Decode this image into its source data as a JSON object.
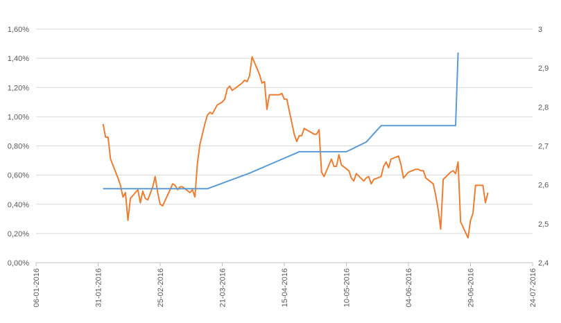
{
  "chart_data": {
    "type": "line",
    "x_axis": {
      "type": "date",
      "range": [
        "2016-01-06",
        "2016-07-24"
      ],
      "tick_labels": [
        "06-01-2016",
        "31-01-2016",
        "25-02-2016",
        "21-03-2016",
        "15-04-2016",
        "10-05-2016",
        "04-06-2016",
        "29-06-2016",
        "24-07-2016"
      ],
      "tick_dates": [
        "2016-01-06",
        "2016-01-31",
        "2016-02-25",
        "2016-03-21",
        "2016-04-15",
        "2016-05-10",
        "2016-06-04",
        "2016-06-29",
        "2016-07-24"
      ]
    },
    "y_left": {
      "range": [
        0,
        0.016
      ],
      "tick_labels": [
        "0,00%",
        "0,20%",
        "0,40%",
        "0,60%",
        "0,80%",
        "1,00%",
        "1,20%",
        "1,40%",
        "1,60%"
      ]
    },
    "y_right": {
      "range": [
        2.4,
        3.0
      ],
      "tick_labels": [
        "2,4",
        "2,5",
        "2,6",
        "2,7",
        "2,8",
        "2,9",
        "3"
      ]
    },
    "grid": "horizontal",
    "legend": "none",
    "series": [
      {
        "axis": "left",
        "color": "#ED7D31",
        "points": [
          [
            "2016-02-02",
            0.0095
          ],
          [
            "2016-02-03",
            0.0086
          ],
          [
            "2016-02-04",
            0.0086
          ],
          [
            "2016-02-05",
            0.0071
          ],
          [
            "2016-02-08",
            0.0058
          ],
          [
            "2016-02-09",
            0.0053
          ],
          [
            "2016-02-10",
            0.0045
          ],
          [
            "2016-02-11",
            0.0048
          ],
          [
            "2016-02-12",
            0.0029
          ],
          [
            "2016-02-13",
            0.0044
          ],
          [
            "2016-02-15",
            0.0048
          ],
          [
            "2016-02-16",
            0.005
          ],
          [
            "2016-02-17",
            0.0041
          ],
          [
            "2016-02-18",
            0.0049
          ],
          [
            "2016-02-19",
            0.0044
          ],
          [
            "2016-02-20",
            0.0043
          ],
          [
            "2016-02-22",
            0.0052
          ],
          [
            "2016-02-23",
            0.0059
          ],
          [
            "2016-02-24",
            0.0048
          ],
          [
            "2016-02-25",
            0.004
          ],
          [
            "2016-02-26",
            0.0039
          ],
          [
            "2016-02-29",
            0.005
          ],
          [
            "2016-03-01",
            0.0054
          ],
          [
            "2016-03-02",
            0.0053
          ],
          [
            "2016-03-03",
            0.005
          ],
          [
            "2016-03-04",
            0.0052
          ],
          [
            "2016-03-05",
            0.0052
          ],
          [
            "2016-03-08",
            0.0048
          ],
          [
            "2016-03-09",
            0.005
          ],
          [
            "2016-03-10",
            0.0045
          ],
          [
            "2016-03-11",
            0.0068
          ],
          [
            "2016-03-12",
            0.0081
          ],
          [
            "2016-03-14",
            0.0095
          ],
          [
            "2016-03-15",
            0.0101
          ],
          [
            "2016-03-16",
            0.0103
          ],
          [
            "2016-03-17",
            0.0102
          ],
          [
            "2016-03-18",
            0.0105
          ],
          [
            "2016-03-19",
            0.0108
          ],
          [
            "2016-03-21",
            0.011
          ],
          [
            "2016-03-22",
            0.0112
          ],
          [
            "2016-03-23",
            0.0119
          ],
          [
            "2016-03-24",
            0.0121
          ],
          [
            "2016-03-25",
            0.0118
          ],
          [
            "2016-03-29",
            0.0123
          ],
          [
            "2016-03-30",
            0.0125
          ],
          [
            "2016-03-31",
            0.0124
          ],
          [
            "2016-04-01",
            0.0128
          ],
          [
            "2016-04-02",
            0.0141
          ],
          [
            "2016-04-05",
            0.0129
          ],
          [
            "2016-04-06",
            0.0123
          ],
          [
            "2016-04-07",
            0.0124
          ],
          [
            "2016-04-08",
            0.0105
          ],
          [
            "2016-04-09",
            0.0115
          ],
          [
            "2016-04-12",
            0.0115
          ],
          [
            "2016-04-13",
            0.0115
          ],
          [
            "2016-04-14",
            0.0116
          ],
          [
            "2016-04-15",
            0.0112
          ],
          [
            "2016-04-16",
            0.0112
          ],
          [
            "2016-04-19",
            0.0088
          ],
          [
            "2016-04-20",
            0.0083
          ],
          [
            "2016-04-21",
            0.0087
          ],
          [
            "2016-04-22",
            0.0087
          ],
          [
            "2016-04-23",
            0.0092
          ],
          [
            "2016-04-26",
            0.0089
          ],
          [
            "2016-04-27",
            0.0088
          ],
          [
            "2016-04-28",
            0.0088
          ],
          [
            "2016-04-29",
            0.0091
          ],
          [
            "2016-04-30",
            0.0062
          ],
          [
            "2016-05-01",
            0.0059
          ],
          [
            "2016-05-04",
            0.0071
          ],
          [
            "2016-05-05",
            0.0066
          ],
          [
            "2016-05-06",
            0.0066
          ],
          [
            "2016-05-07",
            0.0074
          ],
          [
            "2016-05-08",
            0.0067
          ],
          [
            "2016-05-11",
            0.0063
          ],
          [
            "2016-05-12",
            0.0058
          ],
          [
            "2016-05-13",
            0.0056
          ],
          [
            "2016-05-14",
            0.0061
          ],
          [
            "2016-05-17",
            0.0056
          ],
          [
            "2016-05-18",
            0.0058
          ],
          [
            "2016-05-19",
            0.0059
          ],
          [
            "2016-05-20",
            0.0054
          ],
          [
            "2016-05-21",
            0.0057
          ],
          [
            "2016-05-24",
            0.0059
          ],
          [
            "2016-05-25",
            0.0066
          ],
          [
            "2016-05-26",
            0.0069
          ],
          [
            "2016-05-27",
            0.0065
          ],
          [
            "2016-05-28",
            0.0071
          ],
          [
            "2016-05-31",
            0.0073
          ],
          [
            "2016-06-01",
            0.0067
          ],
          [
            "2016-06-02",
            0.0058
          ],
          [
            "2016-06-03",
            0.006
          ],
          [
            "2016-06-04",
            0.0062
          ],
          [
            "2016-06-07",
            0.0064
          ],
          [
            "2016-06-08",
            0.0064
          ],
          [
            "2016-06-09",
            0.0063
          ],
          [
            "2016-06-10",
            0.0063
          ],
          [
            "2016-06-11",
            0.0058
          ],
          [
            "2016-06-14",
            0.0054
          ],
          [
            "2016-06-15",
            0.0046
          ],
          [
            "2016-06-16",
            0.0036
          ],
          [
            "2016-06-17",
            0.0023
          ],
          [
            "2016-06-18",
            0.0057
          ],
          [
            "2016-06-21",
            0.0062
          ],
          [
            "2016-06-22",
            0.0063
          ],
          [
            "2016-06-23",
            0.0061
          ],
          [
            "2016-06-24",
            0.0069
          ],
          [
            "2016-06-25",
            0.0028
          ],
          [
            "2016-06-28",
            0.0017
          ],
          [
            "2016-06-29",
            0.0029
          ],
          [
            "2016-06-30",
            0.0034
          ],
          [
            "2016-07-01",
            0.0053
          ],
          [
            "2016-07-04",
            0.0053
          ],
          [
            "2016-07-05",
            0.0041
          ],
          [
            "2016-07-06",
            0.0048
          ]
        ]
      },
      {
        "axis": "right",
        "color": "#5B9BD5",
        "points": [
          [
            "2016-02-02",
            2.59
          ],
          [
            "2016-03-15",
            2.59
          ],
          [
            "2016-04-01",
            2.63
          ],
          [
            "2016-04-21",
            2.685
          ],
          [
            "2016-05-10",
            2.685
          ],
          [
            "2016-05-18",
            2.71
          ],
          [
            "2016-05-24",
            2.752
          ],
          [
            "2016-06-23",
            2.752
          ],
          [
            "2016-06-24",
            2.94
          ]
        ]
      }
    ]
  }
}
